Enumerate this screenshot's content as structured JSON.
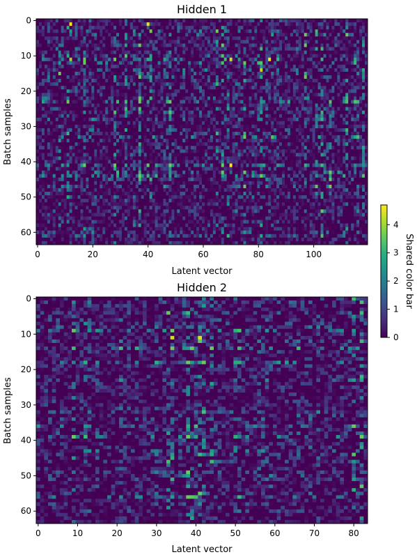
{
  "chart_data": [
    {
      "type": "heatmap",
      "title": "Hidden 1",
      "xlabel": "Latent vector",
      "ylabel": "Batch samples",
      "columns": 120,
      "rows": 64,
      "xticks": [
        0,
        20,
        40,
        60,
        80,
        100
      ],
      "yticks": [
        0,
        10,
        20,
        30,
        40,
        50,
        60
      ],
      "value_range": [
        0,
        4.7
      ],
      "colormap": "viridis",
      "bright_cells": [
        {
          "x": 12,
          "y": 1,
          "value": 4.6
        },
        {
          "x": 40,
          "y": 1,
          "value": 4.5
        },
        {
          "x": 70,
          "y": 11,
          "value": 4.4
        },
        {
          "x": 84,
          "y": 11,
          "value": 4.6
        },
        {
          "x": 81,
          "y": 14,
          "value": 4.2
        },
        {
          "x": 70,
          "y": 41,
          "value": 4.7
        },
        {
          "x": 12,
          "y": 11,
          "value": 4.0
        }
      ],
      "bright_columns": [
        8,
        11,
        17,
        28,
        32,
        37,
        41,
        48,
        65,
        67,
        69,
        75,
        81,
        97,
        101,
        103,
        106,
        112,
        118
      ],
      "bright_rows": [
        11,
        12,
        23,
        33,
        41,
        43,
        44
      ]
    },
    {
      "type": "heatmap",
      "title": "Hidden 2",
      "xlabel": "Latent vector",
      "ylabel": "Batch samples",
      "columns": 84,
      "rows": 64,
      "xticks": [
        0,
        10,
        20,
        30,
        40,
        50,
        60,
        70,
        80
      ],
      "yticks": [
        0,
        10,
        20,
        30,
        40,
        50,
        60
      ],
      "value_range": [
        0,
        4.7
      ],
      "colormap": "viridis",
      "bright_cells": [
        {
          "x": 34,
          "y": 11,
          "value": 4.3
        },
        {
          "x": 41,
          "y": 11,
          "value": 4.4
        },
        {
          "x": 9,
          "y": 14,
          "value": 3.2
        },
        {
          "x": 34,
          "y": 45,
          "value": 3.0
        },
        {
          "x": 80,
          "y": 44,
          "value": 3.4
        },
        {
          "x": 80,
          "y": 54,
          "value": 3.0
        }
      ],
      "bright_columns": [
        9,
        33,
        34,
        38,
        39,
        41,
        42,
        44,
        80,
        82
      ],
      "bright_rows": [
        9,
        14,
        18,
        36,
        39,
        56
      ]
    }
  ],
  "colorbar": {
    "label": "Shared color bar",
    "ticks": [
      0,
      1,
      2,
      3,
      4
    ],
    "range": [
      0,
      4.7
    ]
  }
}
